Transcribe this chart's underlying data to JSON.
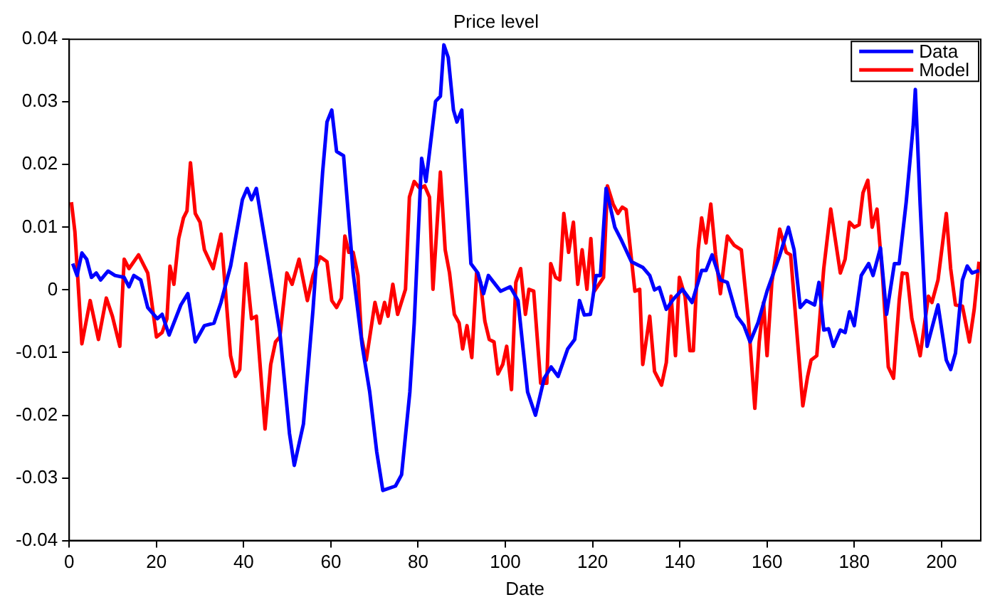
{
  "chart_data": {
    "type": "line",
    "title": "Price level",
    "xlabel": "Date",
    "xlim": [
      0,
      209
    ],
    "xticks": [
      0,
      20,
      40,
      60,
      80,
      100,
      120,
      140,
      160,
      180,
      200
    ],
    "ylim": [
      -0.04,
      0.04
    ],
    "yticks": [
      -0.04,
      -0.03,
      -0.02,
      -0.01,
      0,
      0.01,
      0.02,
      0.03,
      0.04
    ],
    "grid": false,
    "legend": "top right",
    "marker": "none",
    "line_style": "solid",
    "series": [
      {
        "name": "Data",
        "color": "#0000ff",
        "x": [
          0.8,
          1.8,
          2.9,
          4,
          5.1,
          6.2,
          7.2,
          8.9,
          10.5,
          12.6,
          13.7,
          14.8,
          16.4,
          18,
          20.2,
          21.3,
          22.9,
          25.6,
          27.2,
          28.9,
          31,
          33.2,
          34.8,
          37,
          39.7,
          40.8,
          41.8,
          42.9,
          45.6,
          48.3,
          50.5,
          51.6,
          53.7,
          55.9,
          58.1,
          59.1,
          60.2,
          61.3,
          62.9,
          65.1,
          67.2,
          68.9,
          70.5,
          71.9,
          74.8,
          76.2,
          78.1,
          79.1,
          80.8,
          81.8,
          84,
          85.1,
          85.9,
          86.9,
          88.1,
          88.9,
          90,
          92.1,
          93.7,
          95,
          96.1,
          98.9,
          101.1,
          102.9,
          105.1,
          106.9,
          108.9,
          110.5,
          112.1,
          114.3,
          115.9,
          117,
          118.1,
          119.5,
          120.8,
          121.8,
          123.1,
          125.1,
          126.7,
          128.9,
          131.5,
          133.1,
          134.2,
          135.3,
          136.9,
          138.5,
          140.6,
          142.8,
          145,
          146,
          147.4,
          149.3,
          150.9,
          153.1,
          154.7,
          156.1,
          157.9,
          160,
          162.8,
          164.9,
          166.2,
          167.6,
          169,
          170.9,
          171.9,
          173,
          174.1,
          175.2,
          176.8,
          177.9,
          178.9,
          180,
          181.6,
          183.3,
          184.3,
          186,
          187.4,
          189.2,
          190.3,
          191.9,
          193.5,
          194,
          195.1,
          196.7,
          197.8,
          199.2,
          201.1,
          202.1,
          203.2,
          204.8,
          205.9,
          207,
          208.6
        ],
        "values": [
          0.0042,
          0.0023,
          0.0059,
          0.0049,
          0.002,
          0.0027,
          0.0016,
          0.003,
          0.0023,
          0.002,
          0.0005,
          0.0023,
          0.0016,
          -0.0028,
          -0.0046,
          -0.0039,
          -0.0072,
          -0.0024,
          -0.0006,
          -0.0083,
          -0.0057,
          -0.0053,
          -0.002,
          0.0038,
          0.0144,
          0.0162,
          0.0144,
          0.0162,
          0.0049,
          -0.0068,
          -0.0229,
          -0.028,
          -0.0214,
          -0.0031,
          0.0188,
          0.0268,
          0.0287,
          0.0221,
          0.0214,
          0.0027,
          -0.009,
          -0.0163,
          -0.0258,
          -0.032,
          -0.0313,
          -0.0295,
          -0.0163,
          -0.0053,
          0.021,
          0.0173,
          0.0301,
          0.0309,
          0.0391,
          0.0371,
          0.0287,
          0.0268,
          0.0287,
          0.0042,
          0.0027,
          -0.0006,
          0.0023,
          -0.0002,
          0.0005,
          -0.0017,
          -0.0163,
          -0.02,
          -0.0141,
          -0.0123,
          -0.0138,
          -0.0094,
          -0.0079,
          -0.0017,
          -0.004,
          -0.0039,
          0.0023,
          0.0023,
          0.0162,
          0.01,
          0.0078,
          0.0045,
          0.0036,
          0.0023,
          0,
          0.0004,
          -0.0031,
          -0.0015,
          0.0001,
          -0.002,
          0.0031,
          0.0031,
          0.0056,
          0.0016,
          0.0012,
          -0.0042,
          -0.0057,
          -0.0083,
          -0.0053,
          -0.0002,
          0.0053,
          0.01,
          0.0064,
          -0.0028,
          -0.0017,
          -0.0024,
          0.0012,
          -0.0064,
          -0.0062,
          -0.009,
          -0.0064,
          -0.0068,
          -0.0035,
          -0.0057,
          0.0023,
          0.0042,
          0.0023,
          0.0067,
          -0.0039,
          0.0042,
          0.0042,
          0.014,
          0.0261,
          0.032,
          0.0137,
          -0.009,
          -0.0061,
          -0.0024,
          -0.0112,
          -0.0127,
          -0.0101,
          0.0016,
          0.0038,
          0.0027,
          0.0031
        ]
      },
      {
        "name": "Model",
        "color": "#ff0000",
        "x": [
          0.5,
          1.3,
          2.9,
          4.8,
          6.7,
          8.5,
          9.9,
          11.6,
          12.6,
          13.7,
          15.9,
          18,
          20,
          21.3,
          22.4,
          23.1,
          24,
          25.1,
          26.2,
          27,
          27.8,
          28.9,
          30,
          31,
          33,
          34.8,
          37,
          38.1,
          39.1,
          40.5,
          41.8,
          42.9,
          44.9,
          46.2,
          47.3,
          48.3,
          49.9,
          51.1,
          52.7,
          54.6,
          55.9,
          57.5,
          59.1,
          60.2,
          61.3,
          62.4,
          63.2,
          64.1,
          65.1,
          66.2,
          67,
          68.1,
          70.1,
          71.2,
          72.3,
          73.1,
          74.2,
          75.3,
          77.1,
          78,
          79.1,
          80.4,
          81.5,
          82.6,
          83.4,
          85.1,
          86.2,
          87.2,
          88.3,
          89.4,
          90.2,
          91.2,
          92.3,
          93.4,
          94.3,
          95.3,
          96.3,
          97.4,
          98.3,
          99.4,
          100.3,
          101.4,
          102.4,
          103.5,
          104.6,
          105.4,
          106.5,
          108.1,
          109.5,
          110.4,
          111.5,
          112.5,
          113.4,
          114.5,
          115.6,
          116.6,
          117.6,
          118.7,
          119.6,
          120.4,
          122.5,
          123.4,
          124.7,
          125.8,
          126.8,
          127.7,
          128.8,
          129.7,
          130.8,
          131.5,
          133.1,
          134.2,
          135.8,
          136.9,
          138,
          139,
          139.9,
          141.2,
          142.3,
          143.1,
          144.2,
          145,
          146,
          147.1,
          148.2,
          149.3,
          150.9,
          152.5,
          154.1,
          155.7,
          157.2,
          158.2,
          159.2,
          160,
          161.1,
          162.9,
          164.4,
          165.4,
          168.2,
          169.3,
          170.1,
          171.4,
          173,
          174.6,
          175.7,
          176.8,
          177.9,
          178.9,
          180,
          181.1,
          182,
          183.1,
          184.1,
          185.2,
          186.5,
          187.8,
          189,
          190.3,
          191,
          192.1,
          193.2,
          195.1,
          197,
          197.8,
          199.2,
          201.1,
          202.1,
          203.2,
          204.8,
          206.4,
          207.5,
          208.6
        ],
        "values": [
          0.014,
          0.0093,
          -0.0086,
          -0.0017,
          -0.0079,
          -0.0013,
          -0.0042,
          -0.009,
          0.0049,
          0.0034,
          0.0056,
          0.0027,
          -0.0075,
          -0.0068,
          -0.0046,
          0.0038,
          0.0009,
          0.0082,
          0.0115,
          0.0126,
          0.0203,
          0.0122,
          0.0108,
          0.0064,
          0.0034,
          0.0089,
          -0.0105,
          -0.0138,
          -0.0127,
          0.0042,
          -0.0046,
          -0.0042,
          -0.0222,
          -0.0119,
          -0.0083,
          -0.0075,
          0.0027,
          0.0009,
          0.0049,
          -0.0017,
          0.0023,
          0.0053,
          0.0045,
          -0.0017,
          -0.0028,
          -0.0013,
          0.0086,
          0.006,
          0.006,
          0.0023,
          -0.0075,
          -0.0112,
          -0.002,
          -0.0053,
          -0.002,
          -0.0042,
          0.0009,
          -0.0039,
          0.0001,
          0.0148,
          0.0173,
          0.0162,
          0.0166,
          0.0148,
          0.0001,
          0.0188,
          0.0064,
          0.0027,
          -0.0039,
          -0.0053,
          -0.0094,
          -0.0057,
          -0.0108,
          0.0027,
          0.0012,
          -0.005,
          -0.0079,
          -0.0083,
          -0.0134,
          -0.0119,
          -0.009,
          -0.0159,
          0.0012,
          0.0034,
          -0.0039,
          0.0001,
          -0.0002,
          -0.0149,
          -0.0149,
          0.0042,
          0.002,
          0.0016,
          0.0122,
          0.006,
          0.0108,
          0.0009,
          0.0064,
          0.0001,
          0.0082,
          -0.0002,
          0.002,
          0.0166,
          0.0137,
          0.0122,
          0.0132,
          0.0128,
          0.0056,
          -0.0002,
          0.0001,
          -0.0119,
          -0.0042,
          -0.013,
          -0.0152,
          -0.0116,
          -0.001,
          -0.0105,
          0.002,
          -0.001,
          -0.0097,
          -0.0097,
          0.0064,
          0.0115,
          0.0075,
          0.0137,
          0.0056,
          -0.0006,
          0.0086,
          0.0071,
          0.0064,
          -0.0046,
          -0.0189,
          -0.0083,
          -0.002,
          -0.0105,
          0.0012,
          0.0097,
          0.006,
          0.0056,
          -0.0185,
          -0.0138,
          -0.0112,
          -0.0105,
          0.0034,
          0.0129,
          0.0078,
          0.0027,
          0.0049,
          0.0108,
          0.01,
          0.0104,
          0.0155,
          0.0175,
          0.01,
          0.0129,
          0.002,
          -0.0123,
          -0.0141,
          -0.0017,
          0.0027,
          0.0026,
          -0.0046,
          -0.0105,
          -0.001,
          -0.002,
          0.0016,
          0.0122,
          0.0034,
          -0.0024,
          -0.0026,
          -0.0083,
          -0.0031,
          0.0045
        ]
      }
    ]
  }
}
